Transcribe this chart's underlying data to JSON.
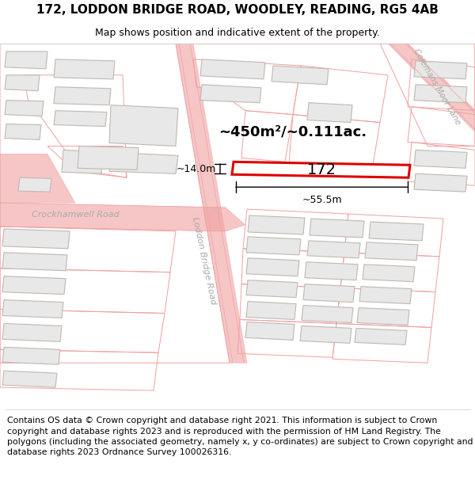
{
  "title_line1": "172, LODDON BRIDGE ROAD, WOODLEY, READING, RG5 4AB",
  "title_line2": "Map shows position and indicative extent of the property.",
  "footer_text": "Contains OS data © Crown copyright and database right 2021. This information is subject to Crown copyright and database rights 2023 and is reproduced with the permission of HM Land Registry. The polygons (including the associated geometry, namely x, y co-ordinates) are subject to Crown copyright and database rights 2023 Ordnance Survey 100026316.",
  "area_text": "~450m²/~0.111ac.",
  "dim_width": "~55.5m",
  "dim_height": "~14.0m",
  "property_number": "172",
  "map_bg": "#ffffff",
  "road_line_color": "#f0a0a0",
  "building_fill": "#e8e8e8",
  "building_edge": "#c0b8b0",
  "plot_edge_color": "#aaaaaa",
  "highlight_fill": "#ffffff",
  "highlight_stroke": "#dd0000",
  "title_fontsize": 11,
  "subtitle_fontsize": 9,
  "footer_fontsize": 7.8,
  "road_label_color": "#aaaaaa",
  "dim_line_color": "#000000"
}
